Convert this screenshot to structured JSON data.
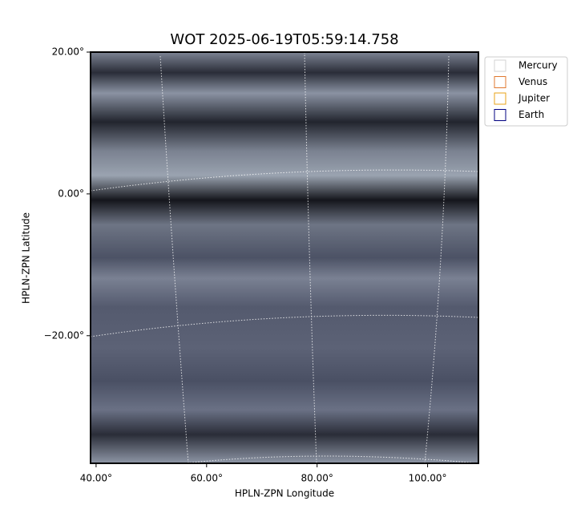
{
  "chart_data": {
    "type": "image",
    "title": "WOT 2025-06-19T05:59:14.758",
    "xlabel": "HPLN-ZPN Longitude",
    "ylabel": "HPLN-ZPN Latitude",
    "xlim": [
      39,
      109.2
    ],
    "ylim": [
      -38,
      20
    ],
    "xticks": [
      {
        "value": 40,
        "label": "40.00°"
      },
      {
        "value": 60,
        "label": "60.00°"
      },
      {
        "value": 80,
        "label": "80.00°"
      },
      {
        "value": 100,
        "label": "100.00°"
      }
    ],
    "yticks": [
      {
        "value": 20,
        "label": "20.00°"
      },
      {
        "value": 0,
        "label": "0.00°"
      },
      {
        "value": -20,
        "label": "−20.00°"
      }
    ],
    "legend": "upper right outside",
    "series": [
      {
        "name": "Mercury",
        "color": "#d3d3d3"
      },
      {
        "name": "Venus",
        "color": "#e0782f"
      },
      {
        "name": "Jupiter",
        "color": "#e8a317"
      },
      {
        "name": "Earth",
        "color": "#000080"
      }
    ]
  }
}
